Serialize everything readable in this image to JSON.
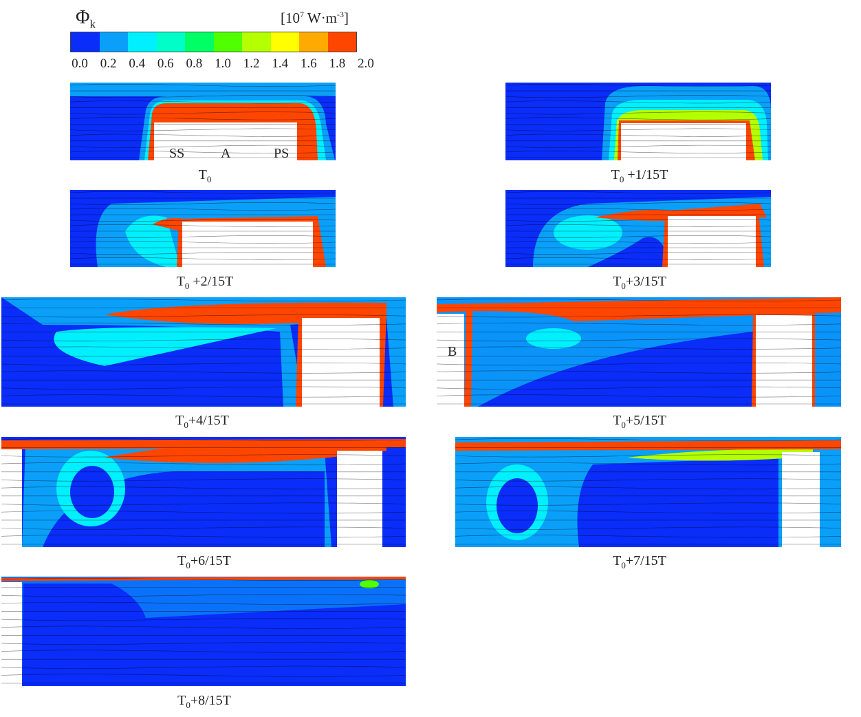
{
  "colorbar": {
    "symbol": "Φ",
    "symbol_sub": "k",
    "unit_prefix": "[10",
    "unit_exp": "7",
    "unit_mid": " W·m",
    "unit_exp2": "-3",
    "unit_end": "]",
    "ticks": [
      "0.0",
      "0.2",
      "0.4",
      "0.6",
      "0.8",
      "1.0",
      "1.2",
      "1.4",
      "1.6",
      "1.8",
      "2.0"
    ],
    "colors": [
      "#0a2dfa",
      "#0aa0fa",
      "#00f0ff",
      "#00ffc8",
      "#00ff64",
      "#50ff00",
      "#b4ff00",
      "#ffff00",
      "#ffaa00",
      "#ff4600"
    ]
  },
  "annotations": {
    "ss": "SS",
    "a": "A",
    "ps": "PS",
    "b": "B"
  },
  "panels": [
    {
      "base": "T",
      "sub": "0",
      "suffix": ""
    },
    {
      "base": "T",
      "sub": "0",
      "suffix": " +1/15T"
    },
    {
      "base": "T",
      "sub": "0",
      "suffix": " +2/15T"
    },
    {
      "base": "T",
      "sub": "0",
      "suffix": "+3/15T"
    },
    {
      "base": "T",
      "sub": "0",
      "suffix": "+4/15T"
    },
    {
      "base": "T",
      "sub": "0",
      "suffix": "+5/15T"
    },
    {
      "base": "T",
      "sub": "0",
      "suffix": "+6/15T"
    },
    {
      "base": "T",
      "sub": "0",
      "suffix": "+7/15T"
    },
    {
      "base": "T",
      "sub": "0",
      "suffix": "+8/15T"
    }
  ]
}
